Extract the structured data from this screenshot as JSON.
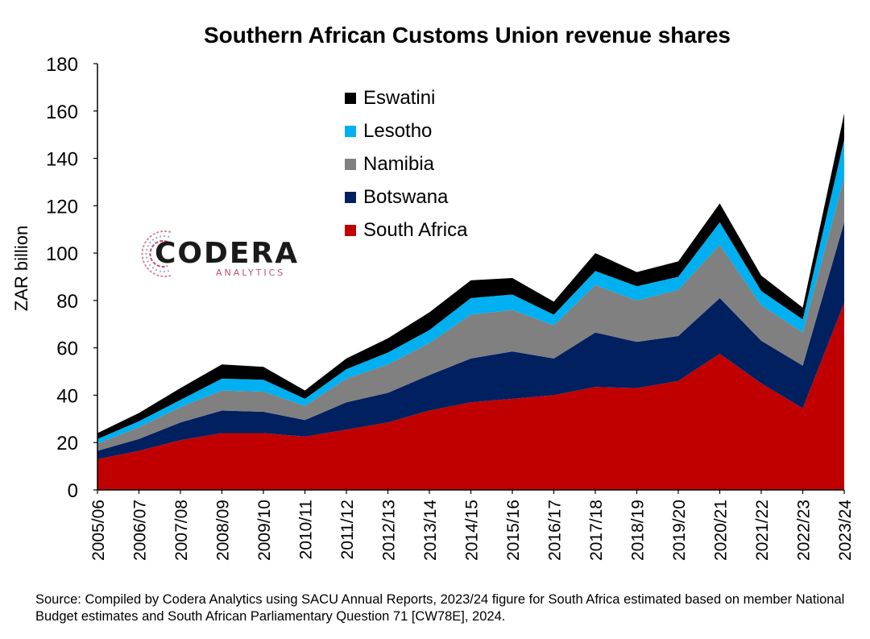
{
  "chart_data": {
    "type": "area",
    "stacked": true,
    "title": "Southern African Customs Union revenue shares",
    "ylabel": "ZAR billion",
    "xlabel": "",
    "ylim": [
      0,
      180
    ],
    "yticks": [
      0,
      20,
      40,
      60,
      80,
      100,
      120,
      140,
      160,
      180
    ],
    "grid": false,
    "legend_position": "top-center",
    "categories": [
      "2005/06",
      "2006/07",
      "2007/08",
      "2008/09",
      "2009/10",
      "2010/11",
      "2011/12",
      "2012/13",
      "2013/14",
      "2014/15",
      "2015/16",
      "2016/17",
      "2017/18",
      "2018/19",
      "2019/20",
      "2020/21",
      "2021/22",
      "2022/23",
      "2023/24"
    ],
    "series": [
      {
        "name": "South Africa",
        "color": "#C00000",
        "values": [
          13,
          16.5,
          21,
          24,
          24,
          22.5,
          25.5,
          28.5,
          33.5,
          37,
          38.5,
          40,
          43.5,
          43,
          46,
          57.5,
          45,
          34.5,
          79
        ]
      },
      {
        "name": "Botswana",
        "color": "#002060",
        "values": [
          3.5,
          5,
          7.5,
          9.5,
          9,
          7,
          11.5,
          12.5,
          15,
          18.5,
          20,
          15.5,
          23,
          19.5,
          19,
          23.5,
          18,
          18,
          34
        ]
      },
      {
        "name": "Namibia",
        "color": "#808080",
        "values": [
          3,
          5,
          6.5,
          8.5,
          8.5,
          6,
          10,
          12,
          13.5,
          18.5,
          17.5,
          14,
          20,
          17.5,
          19.5,
          22.5,
          15,
          14,
          19
        ]
      },
      {
        "name": "Lesotho",
        "color": "#00B0F0",
        "values": [
          2,
          2.5,
          3,
          5,
          5,
          3,
          4,
          5,
          5.5,
          7,
          6.5,
          4.5,
          6,
          6,
          5.5,
          9.5,
          6,
          5.5,
          16
        ]
      },
      {
        "name": "Eswatini",
        "color": "#000000",
        "values": [
          2.5,
          3.5,
          5,
          6,
          5.5,
          3.5,
          4.5,
          6,
          7.5,
          7.5,
          7,
          5.5,
          7.5,
          6,
          6.5,
          8,
          6.5,
          5,
          11
        ]
      }
    ],
    "legend_order": [
      "Eswatini",
      "Lesotho",
      "Namibia",
      "Botswana",
      "South Africa"
    ]
  },
  "logo": {
    "main": "CODERA",
    "sub": "ANALYTICS"
  },
  "source": "Source: Compiled by Codera Analytics using SACU Annual Reports, 2023/24 figure for South Africa estimated based on member National Budget estimates and South African Parliamentary Question 71 [CW78E], 2024."
}
